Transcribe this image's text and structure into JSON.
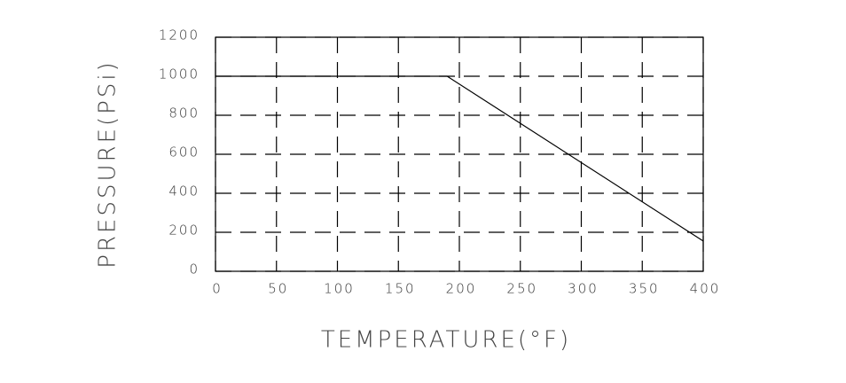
{
  "chart_data": {
    "type": "line",
    "x_label": "TEMPERATURE(°F)",
    "y_label": "PRESSURE(PSi)",
    "x": [
      0,
      190,
      400
    ],
    "series": [
      {
        "color": "#000000",
        "values": [
          1000,
          1000,
          155
        ]
      }
    ],
    "xlim": [
      0,
      400
    ],
    "xticks": [
      0,
      50,
      100,
      150,
      200,
      250,
      300,
      350,
      400
    ],
    "ylim": [
      0,
      1200
    ],
    "yticks": [
      0,
      200,
      400,
      600,
      800,
      1000,
      1200
    ],
    "grid": true
  }
}
